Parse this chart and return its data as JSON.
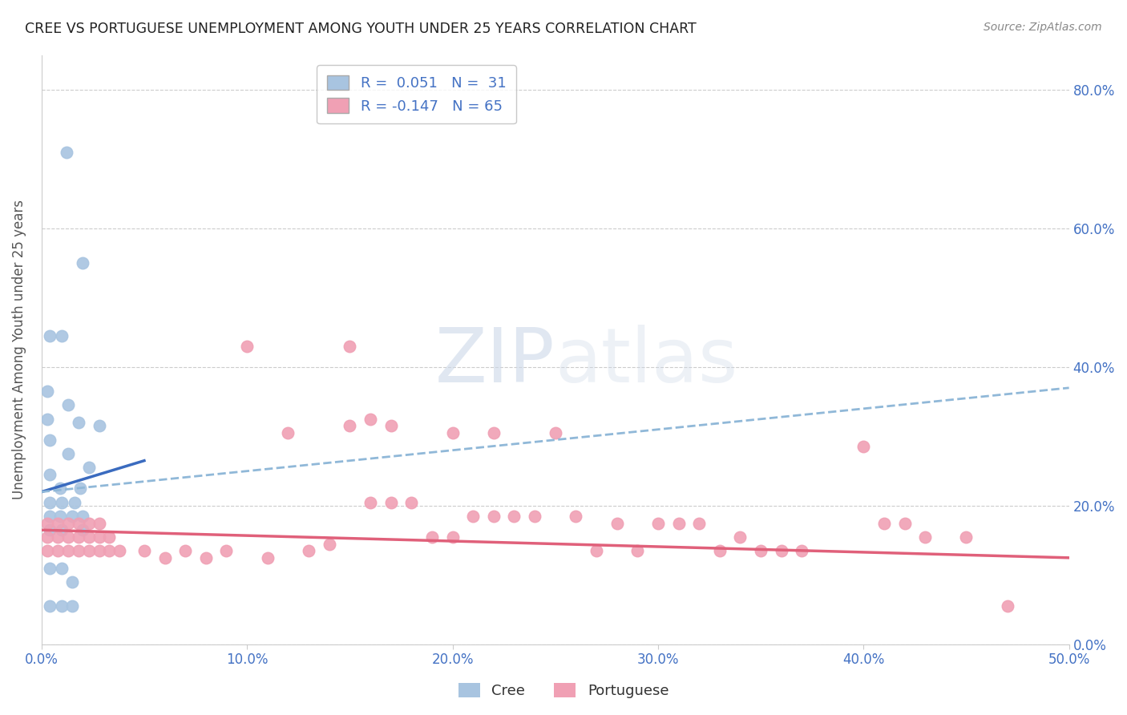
{
  "title": "CREE VS PORTUGUESE UNEMPLOYMENT AMONG YOUTH UNDER 25 YEARS CORRELATION CHART",
  "source": "Source: ZipAtlas.com",
  "ylabel": "Unemployment Among Youth under 25 years",
  "xlim": [
    0.0,
    0.5
  ],
  "ylim": [
    0.0,
    0.85
  ],
  "yticks": [
    0.0,
    0.2,
    0.4,
    0.6,
    0.8
  ],
  "xticks": [
    0.0,
    0.1,
    0.2,
    0.3,
    0.4,
    0.5
  ],
  "cree_R": 0.051,
  "cree_N": 31,
  "port_R": -0.147,
  "port_N": 65,
  "cree_color": "#a8c4e0",
  "port_color": "#f0a0b4",
  "cree_line_color": "#3a6bbf",
  "port_line_color": "#e0607a",
  "dashed_line_color": "#90b8d8",
  "watermark_color": "#ccd8e8",
  "cree_solid_line": [
    0.0,
    0.22,
    0.05,
    0.265
  ],
  "port_solid_line": [
    0.0,
    0.165,
    0.5,
    0.125
  ],
  "dashed_line": [
    0.0,
    0.22,
    0.5,
    0.37
  ],
  "cree_points": [
    [
      0.012,
      0.71
    ],
    [
      0.02,
      0.55
    ],
    [
      0.004,
      0.445
    ],
    [
      0.01,
      0.445
    ],
    [
      0.003,
      0.365
    ],
    [
      0.013,
      0.345
    ],
    [
      0.003,
      0.325
    ],
    [
      0.018,
      0.32
    ],
    [
      0.028,
      0.315
    ],
    [
      0.004,
      0.295
    ],
    [
      0.013,
      0.275
    ],
    [
      0.023,
      0.255
    ],
    [
      0.004,
      0.245
    ],
    [
      0.009,
      0.225
    ],
    [
      0.019,
      0.225
    ],
    [
      0.004,
      0.205
    ],
    [
      0.01,
      0.205
    ],
    [
      0.016,
      0.205
    ],
    [
      0.004,
      0.185
    ],
    [
      0.009,
      0.185
    ],
    [
      0.015,
      0.185
    ],
    [
      0.02,
      0.185
    ],
    [
      0.004,
      0.165
    ],
    [
      0.01,
      0.165
    ],
    [
      0.02,
      0.165
    ],
    [
      0.004,
      0.11
    ],
    [
      0.01,
      0.11
    ],
    [
      0.015,
      0.09
    ],
    [
      0.004,
      0.055
    ],
    [
      0.01,
      0.055
    ],
    [
      0.015,
      0.055
    ]
  ],
  "port_points": [
    [
      0.003,
      0.175
    ],
    [
      0.008,
      0.175
    ],
    [
      0.013,
      0.175
    ],
    [
      0.018,
      0.175
    ],
    [
      0.023,
      0.175
    ],
    [
      0.028,
      0.175
    ],
    [
      0.003,
      0.155
    ],
    [
      0.008,
      0.155
    ],
    [
      0.013,
      0.155
    ],
    [
      0.018,
      0.155
    ],
    [
      0.023,
      0.155
    ],
    [
      0.028,
      0.155
    ],
    [
      0.033,
      0.155
    ],
    [
      0.003,
      0.135
    ],
    [
      0.008,
      0.135
    ],
    [
      0.013,
      0.135
    ],
    [
      0.018,
      0.135
    ],
    [
      0.023,
      0.135
    ],
    [
      0.028,
      0.135
    ],
    [
      0.033,
      0.135
    ],
    [
      0.038,
      0.135
    ],
    [
      0.05,
      0.135
    ],
    [
      0.06,
      0.125
    ],
    [
      0.07,
      0.135
    ],
    [
      0.08,
      0.125
    ],
    [
      0.09,
      0.135
    ],
    [
      0.1,
      0.43
    ],
    [
      0.11,
      0.125
    ],
    [
      0.12,
      0.305
    ],
    [
      0.13,
      0.135
    ],
    [
      0.14,
      0.145
    ],
    [
      0.15,
      0.43
    ],
    [
      0.15,
      0.315
    ],
    [
      0.16,
      0.205
    ],
    [
      0.16,
      0.325
    ],
    [
      0.17,
      0.205
    ],
    [
      0.17,
      0.315
    ],
    [
      0.18,
      0.205
    ],
    [
      0.19,
      0.155
    ],
    [
      0.2,
      0.155
    ],
    [
      0.2,
      0.305
    ],
    [
      0.21,
      0.185
    ],
    [
      0.22,
      0.185
    ],
    [
      0.22,
      0.305
    ],
    [
      0.23,
      0.185
    ],
    [
      0.24,
      0.185
    ],
    [
      0.25,
      0.305
    ],
    [
      0.26,
      0.185
    ],
    [
      0.27,
      0.135
    ],
    [
      0.28,
      0.175
    ],
    [
      0.29,
      0.135
    ],
    [
      0.3,
      0.175
    ],
    [
      0.31,
      0.175
    ],
    [
      0.32,
      0.175
    ],
    [
      0.33,
      0.135
    ],
    [
      0.34,
      0.155
    ],
    [
      0.35,
      0.135
    ],
    [
      0.36,
      0.135
    ],
    [
      0.37,
      0.135
    ],
    [
      0.4,
      0.285
    ],
    [
      0.41,
      0.175
    ],
    [
      0.42,
      0.175
    ],
    [
      0.43,
      0.155
    ],
    [
      0.45,
      0.155
    ],
    [
      0.47,
      0.055
    ]
  ]
}
